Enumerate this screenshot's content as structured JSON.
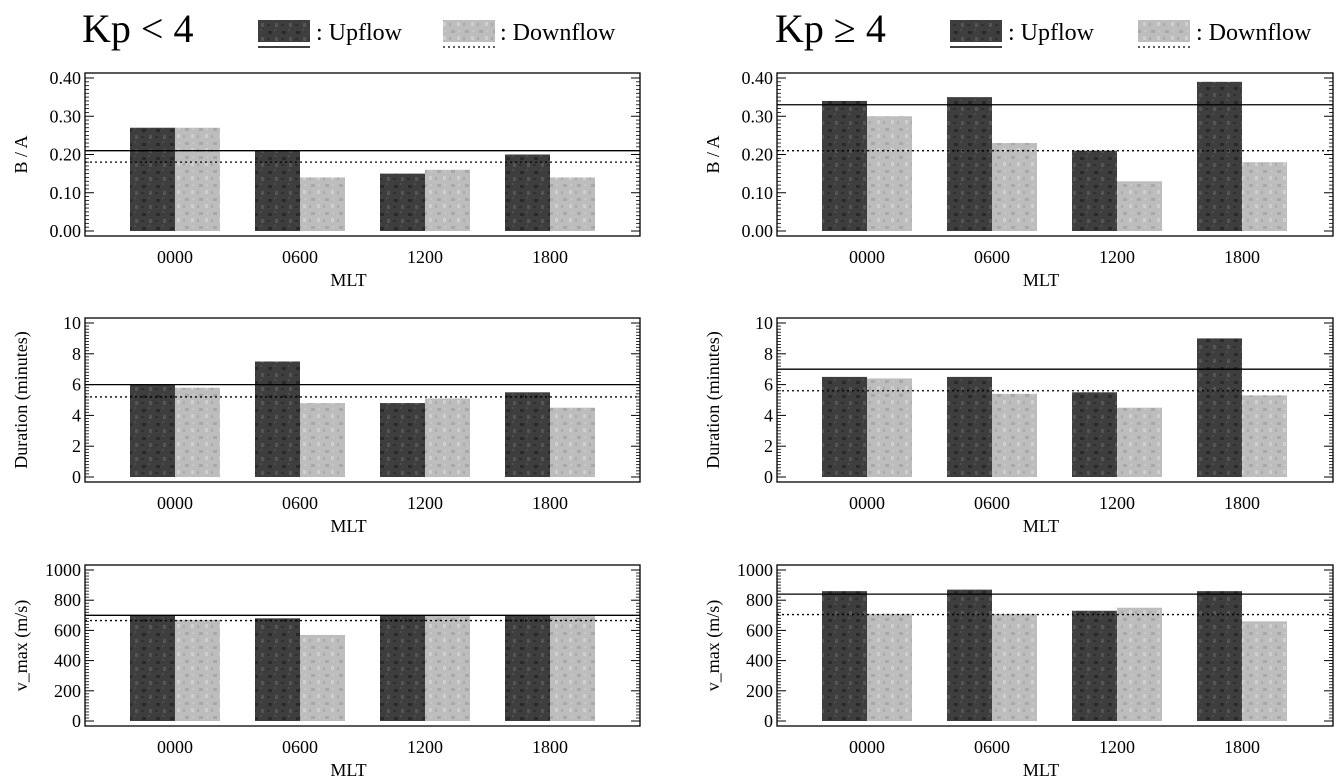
{
  "legend": {
    "upflow_label": ": Upflow",
    "downflow_label": ": Downflow"
  },
  "colors": {
    "upflow_bar": "#3e3e3e",
    "downflow_bar": "#bdbdbd",
    "axis": "#000000"
  },
  "chart_data": [
    {
      "type": "bar",
      "panel_group": "Kp < 4",
      "title": "Kp < 4",
      "xlabel": "MLT",
      "ylabel": "B / A",
      "categories": [
        "0000",
        "0600",
        "1200",
        "1800"
      ],
      "series": [
        {
          "name": "Upflow",
          "values": [
            0.27,
            0.21,
            0.15,
            0.2
          ]
        },
        {
          "name": "Downflow",
          "values": [
            0.27,
            0.14,
            0.16,
            0.14
          ]
        }
      ],
      "ylim": [
        0,
        0.4
      ],
      "yticks": [
        "0.00",
        "0.10",
        "0.20",
        "0.30",
        "0.40"
      ],
      "reference_lines": [
        {
          "series": "Upflow",
          "style": "solid",
          "value": 0.21
        },
        {
          "series": "Downflow",
          "style": "dotted",
          "value": 0.18
        }
      ]
    },
    {
      "type": "bar",
      "panel_group": "Kp < 4",
      "xlabel": "MLT",
      "ylabel": "Duration (minutes)",
      "categories": [
        "0000",
        "0600",
        "1200",
        "1800"
      ],
      "series": [
        {
          "name": "Upflow",
          "values": [
            6.0,
            7.5,
            4.8,
            5.5
          ]
        },
        {
          "name": "Downflow",
          "values": [
            5.8,
            4.8,
            5.1,
            4.5
          ]
        }
      ],
      "ylim": [
        0,
        10
      ],
      "yticks": [
        "0",
        "2",
        "4",
        "6",
        "8",
        "10"
      ],
      "reference_lines": [
        {
          "series": "Upflow",
          "style": "solid",
          "value": 6.0
        },
        {
          "series": "Downflow",
          "style": "dotted",
          "value": 5.2
        }
      ]
    },
    {
      "type": "bar",
      "panel_group": "Kp < 4",
      "xlabel": "MLT",
      "ylabel": "v_max (m/s)",
      "categories": [
        "0000",
        "0600",
        "1200",
        "1800"
      ],
      "series": [
        {
          "name": "Upflow",
          "values": [
            700,
            680,
            700,
            700
          ]
        },
        {
          "name": "Downflow",
          "values": [
            670,
            570,
            700,
            700
          ]
        }
      ],
      "ylim": [
        0,
        1000
      ],
      "yticks": [
        "0",
        "200",
        "400",
        "600",
        "800",
        "1000"
      ],
      "reference_lines": [
        {
          "series": "Upflow",
          "style": "solid",
          "value": 700
        },
        {
          "series": "Downflow",
          "style": "dotted",
          "value": 665
        }
      ]
    },
    {
      "type": "bar",
      "panel_group": "Kp ≥ 4",
      "title": "Kp ≥ 4",
      "xlabel": "MLT",
      "ylabel": "B / A",
      "categories": [
        "0000",
        "0600",
        "1200",
        "1800"
      ],
      "series": [
        {
          "name": "Upflow",
          "values": [
            0.34,
            0.35,
            0.21,
            0.39
          ]
        },
        {
          "name": "Downflow",
          "values": [
            0.3,
            0.23,
            0.13,
            0.18
          ]
        }
      ],
      "ylim": [
        0,
        0.4
      ],
      "yticks": [
        "0.00",
        "0.10",
        "0.20",
        "0.30",
        "0.40"
      ],
      "reference_lines": [
        {
          "series": "Upflow",
          "style": "solid",
          "value": 0.33
        },
        {
          "series": "Downflow",
          "style": "dotted",
          "value": 0.21
        }
      ]
    },
    {
      "type": "bar",
      "panel_group": "Kp ≥ 4",
      "xlabel": "MLT",
      "ylabel": "Duration (minutes)",
      "categories": [
        "0000",
        "0600",
        "1200",
        "1800"
      ],
      "series": [
        {
          "name": "Upflow",
          "values": [
            6.5,
            6.5,
            5.5,
            9.0
          ]
        },
        {
          "name": "Downflow",
          "values": [
            6.4,
            5.4,
            4.5,
            5.3
          ]
        }
      ],
      "ylim": [
        0,
        10
      ],
      "yticks": [
        "0",
        "2",
        "4",
        "6",
        "8",
        "10"
      ],
      "reference_lines": [
        {
          "series": "Upflow",
          "style": "solid",
          "value": 7.0
        },
        {
          "series": "Downflow",
          "style": "dotted",
          "value": 5.6
        }
      ]
    },
    {
      "type": "bar",
      "panel_group": "Kp ≥ 4",
      "xlabel": "MLT",
      "ylabel": "v_max (m/s)",
      "categories": [
        "0000",
        "0600",
        "1200",
        "1800"
      ],
      "series": [
        {
          "name": "Upflow",
          "values": [
            860,
            870,
            730,
            860
          ]
        },
        {
          "name": "Downflow",
          "values": [
            710,
            710,
            750,
            660
          ]
        }
      ],
      "ylim": [
        0,
        1000
      ],
      "yticks": [
        "0",
        "200",
        "400",
        "600",
        "800",
        "1000"
      ],
      "reference_lines": [
        {
          "series": "Upflow",
          "style": "solid",
          "value": 840
        },
        {
          "series": "Downflow",
          "style": "dotted",
          "value": 705
        }
      ]
    }
  ]
}
